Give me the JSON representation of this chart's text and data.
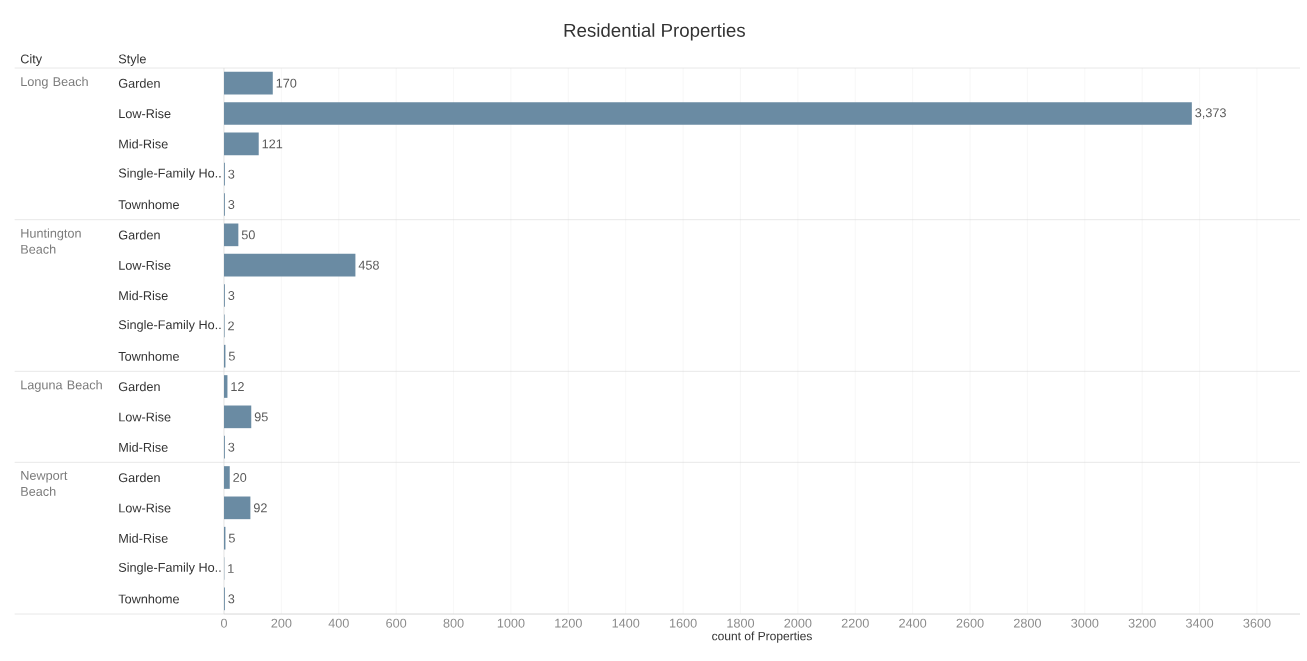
{
  "chart_data": {
    "type": "bar",
    "orientation": "horizontal",
    "title": "Residential Properties",
    "xlabel": "count of Properties",
    "categories": [
      "Garden",
      "Low-Rise",
      "Mid-Rise",
      "Single-Family Ho..",
      "Townhome",
      "Garden",
      "Low-Rise",
      "Mid-Rise",
      "Single-Family Ho..",
      "Townhome",
      "Garden",
      "Low-Rise",
      "Mid-Rise",
      "Garden",
      "Low-Rise",
      "Mid-Rise",
      "Single-Family Ho..",
      "Townhome"
    ],
    "values": [
      170,
      3373,
      121,
      3,
      3,
      50,
      458,
      3,
      2,
      5,
      12,
      95,
      3,
      20,
      92,
      5,
      1,
      3
    ],
    "value_labels": [
      "170",
      "3,373",
      "121",
      "3",
      "3",
      "50",
      "458",
      "3",
      "2",
      "5",
      "12",
      "95",
      "3",
      "20",
      "92",
      "5",
      "1",
      "3"
    ],
    "color": "#6a8ba3",
    "xlim": [
      0,
      3750
    ],
    "xticks": [
      0,
      200,
      400,
      600,
      800,
      1000,
      1200,
      1400,
      1600,
      1800,
      2000,
      2200,
      2400,
      2600,
      2800,
      3000,
      3200,
      3400,
      3600
    ],
    "grid": "x",
    "annotations": [
      "City",
      "Style",
      "Long Beach",
      "Huntington Beach",
      "Laguna Beach",
      "Newport Beach"
    ]
  }
}
